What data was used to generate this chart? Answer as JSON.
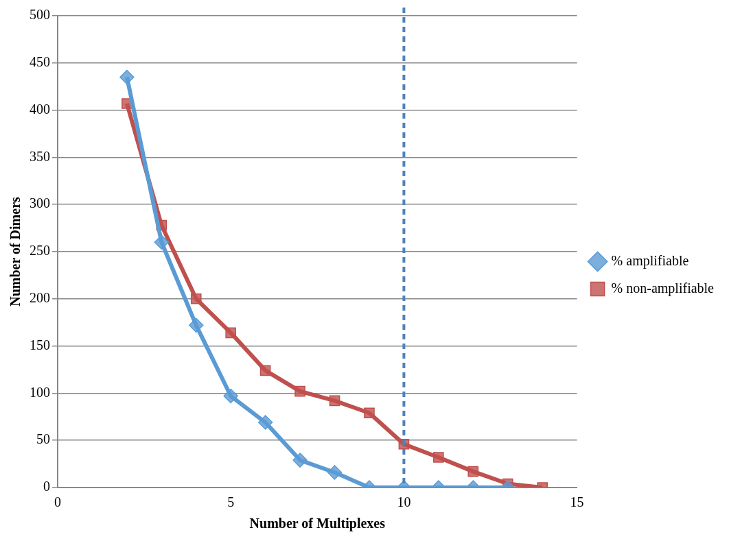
{
  "chart_data": {
    "type": "line",
    "xlabel": "Number of Multiplexes",
    "ylabel": "Number of Dimers",
    "xlim": [
      0,
      15
    ],
    "xticks": [
      0,
      5,
      10,
      15
    ],
    "ylim": [
      0,
      500
    ],
    "yticks": [
      0,
      50,
      100,
      150,
      200,
      250,
      300,
      350,
      400,
      450,
      500
    ],
    "grid": "y",
    "legend": "right",
    "series": [
      {
        "name": "% amplifiable",
        "color": "#5b9bd5",
        "marker": "diamond",
        "x": [
          2,
          3,
          4,
          5,
          6,
          7,
          8,
          9,
          10,
          11,
          12,
          13
        ],
        "values": [
          435,
          260,
          172,
          97,
          69,
          29,
          16,
          0,
          0,
          0,
          0,
          0
        ]
      },
      {
        "name": "% non-amplifiable",
        "color": "#c0504d",
        "marker": "square",
        "x": [
          2,
          3,
          4,
          5,
          6,
          7,
          8,
          9,
          10,
          11,
          12,
          13,
          14
        ],
        "values": [
          407,
          278,
          200,
          164,
          124,
          102,
          92,
          79,
          46,
          32,
          17,
          4,
          0
        ]
      }
    ],
    "ref_lines": [
      {
        "axis": "x",
        "value": 10,
        "color": "#4f81bd",
        "line_style": "dashed"
      }
    ]
  }
}
